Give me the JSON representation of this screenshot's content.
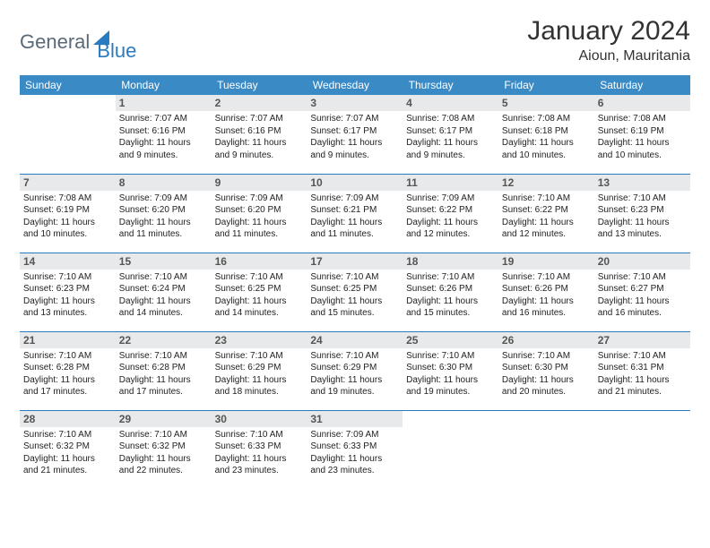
{
  "logo": {
    "text1": "General",
    "text2": "Blue"
  },
  "title": "January 2024",
  "subtitle": "Aioun, Mauritania",
  "colors": {
    "header_bg": "#3a8ac6",
    "header_text": "#ffffff",
    "daynum_bg": "#e8e9ea",
    "daynum_text": "#555555",
    "rule": "#2a7ac0",
    "logo_gray": "#5a6a78",
    "logo_blue": "#2a7ac0"
  },
  "dayHeaders": [
    "Sunday",
    "Monday",
    "Tuesday",
    "Wednesday",
    "Thursday",
    "Friday",
    "Saturday"
  ],
  "weeks": [
    [
      null,
      {
        "n": "1",
        "sr": "7:07 AM",
        "ss": "6:16 PM",
        "dl": "11 hours and 9 minutes."
      },
      {
        "n": "2",
        "sr": "7:07 AM",
        "ss": "6:16 PM",
        "dl": "11 hours and 9 minutes."
      },
      {
        "n": "3",
        "sr": "7:07 AM",
        "ss": "6:17 PM",
        "dl": "11 hours and 9 minutes."
      },
      {
        "n": "4",
        "sr": "7:08 AM",
        "ss": "6:17 PM",
        "dl": "11 hours and 9 minutes."
      },
      {
        "n": "5",
        "sr": "7:08 AM",
        "ss": "6:18 PM",
        "dl": "11 hours and 10 minutes."
      },
      {
        "n": "6",
        "sr": "7:08 AM",
        "ss": "6:19 PM",
        "dl": "11 hours and 10 minutes."
      }
    ],
    [
      {
        "n": "7",
        "sr": "7:08 AM",
        "ss": "6:19 PM",
        "dl": "11 hours and 10 minutes."
      },
      {
        "n": "8",
        "sr": "7:09 AM",
        "ss": "6:20 PM",
        "dl": "11 hours and 11 minutes."
      },
      {
        "n": "9",
        "sr": "7:09 AM",
        "ss": "6:20 PM",
        "dl": "11 hours and 11 minutes."
      },
      {
        "n": "10",
        "sr": "7:09 AM",
        "ss": "6:21 PM",
        "dl": "11 hours and 11 minutes."
      },
      {
        "n": "11",
        "sr": "7:09 AM",
        "ss": "6:22 PM",
        "dl": "11 hours and 12 minutes."
      },
      {
        "n": "12",
        "sr": "7:10 AM",
        "ss": "6:22 PM",
        "dl": "11 hours and 12 minutes."
      },
      {
        "n": "13",
        "sr": "7:10 AM",
        "ss": "6:23 PM",
        "dl": "11 hours and 13 minutes."
      }
    ],
    [
      {
        "n": "14",
        "sr": "7:10 AM",
        "ss": "6:23 PM",
        "dl": "11 hours and 13 minutes."
      },
      {
        "n": "15",
        "sr": "7:10 AM",
        "ss": "6:24 PM",
        "dl": "11 hours and 14 minutes."
      },
      {
        "n": "16",
        "sr": "7:10 AM",
        "ss": "6:25 PM",
        "dl": "11 hours and 14 minutes."
      },
      {
        "n": "17",
        "sr": "7:10 AM",
        "ss": "6:25 PM",
        "dl": "11 hours and 15 minutes."
      },
      {
        "n": "18",
        "sr": "7:10 AM",
        "ss": "6:26 PM",
        "dl": "11 hours and 15 minutes."
      },
      {
        "n": "19",
        "sr": "7:10 AM",
        "ss": "6:26 PM",
        "dl": "11 hours and 16 minutes."
      },
      {
        "n": "20",
        "sr": "7:10 AM",
        "ss": "6:27 PM",
        "dl": "11 hours and 16 minutes."
      }
    ],
    [
      {
        "n": "21",
        "sr": "7:10 AM",
        "ss": "6:28 PM",
        "dl": "11 hours and 17 minutes."
      },
      {
        "n": "22",
        "sr": "7:10 AM",
        "ss": "6:28 PM",
        "dl": "11 hours and 17 minutes."
      },
      {
        "n": "23",
        "sr": "7:10 AM",
        "ss": "6:29 PM",
        "dl": "11 hours and 18 minutes."
      },
      {
        "n": "24",
        "sr": "7:10 AM",
        "ss": "6:29 PM",
        "dl": "11 hours and 19 minutes."
      },
      {
        "n": "25",
        "sr": "7:10 AM",
        "ss": "6:30 PM",
        "dl": "11 hours and 19 minutes."
      },
      {
        "n": "26",
        "sr": "7:10 AM",
        "ss": "6:30 PM",
        "dl": "11 hours and 20 minutes."
      },
      {
        "n": "27",
        "sr": "7:10 AM",
        "ss": "6:31 PM",
        "dl": "11 hours and 21 minutes."
      }
    ],
    [
      {
        "n": "28",
        "sr": "7:10 AM",
        "ss": "6:32 PM",
        "dl": "11 hours and 21 minutes."
      },
      {
        "n": "29",
        "sr": "7:10 AM",
        "ss": "6:32 PM",
        "dl": "11 hours and 22 minutes."
      },
      {
        "n": "30",
        "sr": "7:10 AM",
        "ss": "6:33 PM",
        "dl": "11 hours and 23 minutes."
      },
      {
        "n": "31",
        "sr": "7:09 AM",
        "ss": "6:33 PM",
        "dl": "11 hours and 23 minutes."
      },
      null,
      null,
      null
    ]
  ],
  "labels": {
    "sunrise": "Sunrise:",
    "sunset": "Sunset:",
    "daylight": "Daylight:"
  }
}
